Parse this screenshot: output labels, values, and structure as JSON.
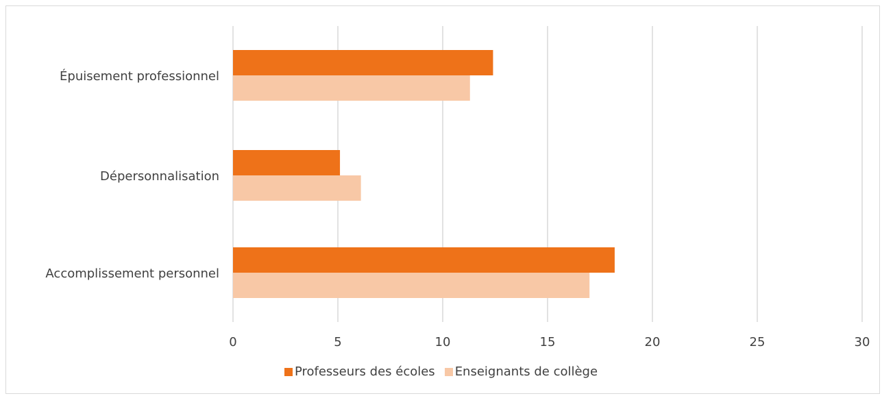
{
  "chart_data": {
    "type": "bar",
    "orientation": "horizontal",
    "categories": [
      "Épuisement professionnel",
      "Dépersonnalisation",
      "Accomplissement personnel"
    ],
    "series": [
      {
        "name": "Professeurs des écoles",
        "color": "#ee7219",
        "values": [
          12.4,
          5.1,
          18.2
        ]
      },
      {
        "name": "Enseignants de collège",
        "color": "#f8c8a6",
        "values": [
          11.3,
          6.1,
          17.0
        ]
      }
    ],
    "xlim": [
      0,
      30
    ],
    "xticks": [
      "0",
      "5",
      "10",
      "15",
      "20",
      "25",
      "30"
    ],
    "grid": true,
    "legend": "bottom"
  }
}
